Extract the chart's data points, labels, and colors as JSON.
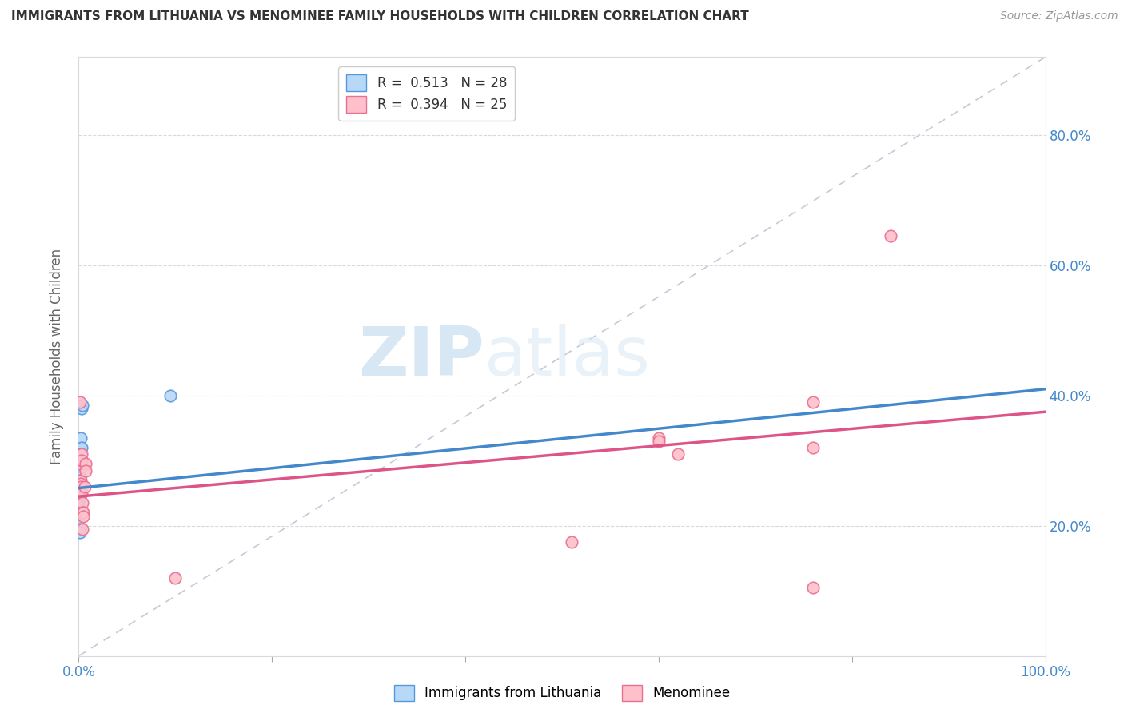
{
  "title": "IMMIGRANTS FROM LITHUANIA VS MENOMINEE FAMILY HOUSEHOLDS WITH CHILDREN CORRELATION CHART",
  "source": "Source: ZipAtlas.com",
  "ylabel": "Family Households with Children",
  "xlim": [
    0.0,
    1.0
  ],
  "ylim": [
    0.0,
    0.92
  ],
  "xtick_pos": [
    0.0,
    0.2,
    0.4,
    0.6,
    0.8,
    1.0
  ],
  "ytick_pos": [
    0.2,
    0.4,
    0.6,
    0.8
  ],
  "xtick_labels": [
    "0.0%",
    "",
    "",
    "",
    "",
    "100.0%"
  ],
  "ytick_labels": [
    "20.0%",
    "40.0%",
    "60.0%",
    "80.0%"
  ],
  "watermark_part1": "ZIP",
  "watermark_part2": "atlas",
  "blue_scatter": [
    [
      0.002,
      0.32
    ],
    [
      0.002,
      0.335
    ],
    [
      0.003,
      0.32
    ],
    [
      0.001,
      0.31
    ],
    [
      0.001,
      0.3
    ],
    [
      0.001,
      0.295
    ],
    [
      0.001,
      0.285
    ],
    [
      0.001,
      0.275
    ],
    [
      0.001,
      0.27
    ],
    [
      0.001,
      0.265
    ],
    [
      0.001,
      0.26
    ],
    [
      0.0,
      0.255
    ],
    [
      0.0,
      0.25
    ],
    [
      0.0,
      0.245
    ],
    [
      0.0,
      0.24
    ],
    [
      0.0,
      0.235
    ],
    [
      0.0,
      0.23
    ],
    [
      0.0,
      0.225
    ],
    [
      0.0,
      0.22
    ],
    [
      0.0,
      0.215
    ],
    [
      0.0,
      0.21
    ],
    [
      0.002,
      0.25
    ],
    [
      0.003,
      0.38
    ],
    [
      0.004,
      0.385
    ],
    [
      0.002,
      0.22
    ],
    [
      0.001,
      0.195
    ],
    [
      0.001,
      0.19
    ],
    [
      0.095,
      0.4
    ]
  ],
  "pink_scatter": [
    [
      0.001,
      0.39
    ],
    [
      0.001,
      0.295
    ],
    [
      0.002,
      0.27
    ],
    [
      0.002,
      0.265
    ],
    [
      0.002,
      0.26
    ],
    [
      0.003,
      0.31
    ],
    [
      0.003,
      0.3
    ],
    [
      0.003,
      0.25
    ],
    [
      0.004,
      0.235
    ],
    [
      0.004,
      0.22
    ],
    [
      0.004,
      0.195
    ],
    [
      0.005,
      0.22
    ],
    [
      0.005,
      0.215
    ],
    [
      0.006,
      0.26
    ],
    [
      0.007,
      0.295
    ],
    [
      0.007,
      0.285
    ],
    [
      0.51,
      0.175
    ],
    [
      0.6,
      0.335
    ],
    [
      0.6,
      0.33
    ],
    [
      0.62,
      0.31
    ],
    [
      0.76,
      0.32
    ],
    [
      0.76,
      0.39
    ],
    [
      0.84,
      0.645
    ],
    [
      0.1,
      0.12
    ],
    [
      0.76,
      0.105
    ]
  ],
  "blue_trendline_x": [
    0.0,
    1.0
  ],
  "blue_trendline_y": [
    0.258,
    0.41
  ],
  "pink_trendline_x": [
    0.0,
    1.0
  ],
  "pink_trendline_y": [
    0.245,
    0.375
  ],
  "blue_scatter_color_face": "#b8d8f8",
  "blue_scatter_color_edge": "#5599dd",
  "pink_scatter_color_face": "#ffc0cb",
  "pink_scatter_color_edge": "#e87090",
  "blue_line_color": "#4488cc",
  "pink_line_color": "#dd5588",
  "diagonal_color": "#c8c8d8",
  "grid_color": "#d8d8e0",
  "axis_label_color": "#4488cc",
  "title_color": "#333333",
  "source_color": "#999999",
  "ylabel_color": "#666666"
}
